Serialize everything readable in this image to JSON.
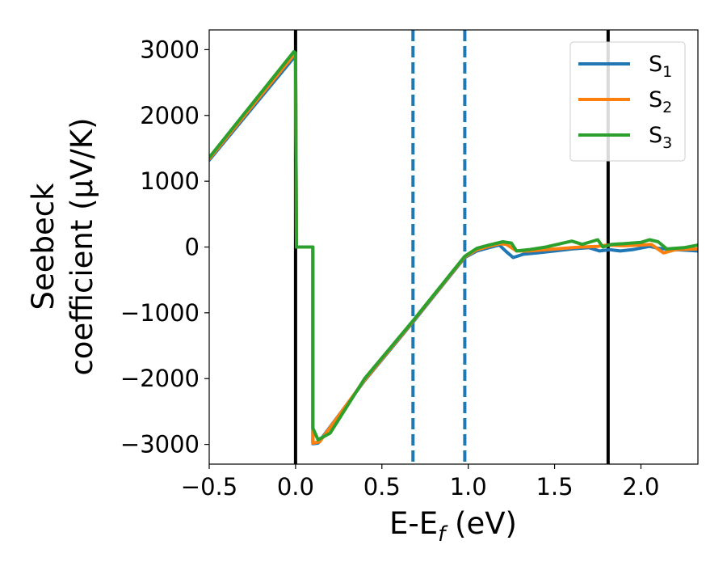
{
  "chart_data": {
    "type": "line",
    "xlabel_main": "E-E",
    "xlabel_sub": "f",
    "xlabel_unit": " (eV)",
    "ylabel_line1": "Seebeck",
    "ylabel_line2": "coefficient  (μV/K)",
    "xlim": [
      -0.5,
      2.33
    ],
    "ylim": [
      -3300,
      3300
    ],
    "xticks": [
      {
        "value": -0.5,
        "label": "−0.5"
      },
      {
        "value": 0.0,
        "label": "0.0"
      },
      {
        "value": 0.5,
        "label": "0.5"
      },
      {
        "value": 1.0,
        "label": "1.0"
      },
      {
        "value": 1.5,
        "label": "1.5"
      },
      {
        "value": 2.0,
        "label": "2.0"
      }
    ],
    "yticks": [
      {
        "value": 3000,
        "label": "3000"
      },
      {
        "value": 2000,
        "label": "2000"
      },
      {
        "value": 1000,
        "label": "1000"
      },
      {
        "value": 0,
        "label": "0"
      },
      {
        "value": -1000,
        "label": "−1000"
      },
      {
        "value": -2000,
        "label": "−2000"
      },
      {
        "value": -3000,
        "label": "−3000"
      }
    ],
    "vlines": [
      {
        "x": 0.0,
        "color": "#000000",
        "style": "solid"
      },
      {
        "x": 1.81,
        "color": "#000000",
        "style": "solid"
      },
      {
        "x": 0.68,
        "color": "#1f77b4",
        "style": "dashed"
      },
      {
        "x": 0.98,
        "color": "#1f77b4",
        "style": "dashed"
      }
    ],
    "legend": {
      "position": "top-right"
    },
    "series": [
      {
        "name": "S",
        "subscript": "1",
        "color": "#1f77b4",
        "points": [
          [
            -0.5,
            1320
          ],
          [
            -0.01,
            2880
          ],
          [
            0.0,
            2860
          ],
          [
            0.005,
            0
          ],
          [
            0.1,
            0
          ],
          [
            0.1,
            -2990
          ],
          [
            0.13,
            -2980
          ],
          [
            0.4,
            -2030
          ],
          [
            0.68,
            -1140
          ],
          [
            0.98,
            -160
          ],
          [
            1.05,
            -60
          ],
          [
            1.12,
            -10
          ],
          [
            1.18,
            30
          ],
          [
            1.22,
            -70
          ],
          [
            1.26,
            -160
          ],
          [
            1.32,
            -110
          ],
          [
            1.4,
            -90
          ],
          [
            1.5,
            -60
          ],
          [
            1.6,
            -30
          ],
          [
            1.7,
            -10
          ],
          [
            1.76,
            -60
          ],
          [
            1.82,
            -40
          ],
          [
            1.88,
            -60
          ],
          [
            1.95,
            -40
          ],
          [
            2.05,
            10
          ],
          [
            2.1,
            -20
          ],
          [
            2.2,
            -40
          ],
          [
            2.33,
            -60
          ]
        ]
      },
      {
        "name": "S",
        "subscript": "2",
        "color": "#ff7f0e",
        "points": [
          [
            -0.5,
            1340
          ],
          [
            -0.01,
            2920
          ],
          [
            0.0,
            2900
          ],
          [
            0.005,
            0
          ],
          [
            0.1,
            0
          ],
          [
            0.1,
            -2980
          ],
          [
            0.14,
            -2960
          ],
          [
            0.4,
            -2020
          ],
          [
            0.68,
            -1130
          ],
          [
            0.98,
            -150
          ],
          [
            1.05,
            -40
          ],
          [
            1.12,
            10
          ],
          [
            1.18,
            50
          ],
          [
            1.22,
            40
          ],
          [
            1.28,
            -60
          ],
          [
            1.35,
            -60
          ],
          [
            1.45,
            -40
          ],
          [
            1.55,
            -20
          ],
          [
            1.65,
            0
          ],
          [
            1.75,
            10
          ],
          [
            1.8,
            30
          ],
          [
            1.9,
            20
          ],
          [
            2.0,
            30
          ],
          [
            2.06,
            40
          ],
          [
            2.13,
            -90
          ],
          [
            2.2,
            -40
          ],
          [
            2.33,
            -30
          ]
        ]
      },
      {
        "name": "S",
        "subscript": "3",
        "color": "#2ca02c",
        "points": [
          [
            -0.5,
            1360
          ],
          [
            -0.01,
            2970
          ],
          [
            0.0,
            2950
          ],
          [
            0.005,
            0
          ],
          [
            0.1,
            0
          ],
          [
            0.1,
            -2750
          ],
          [
            0.13,
            -2930
          ],
          [
            0.2,
            -2830
          ],
          [
            0.4,
            -2000
          ],
          [
            0.68,
            -1120
          ],
          [
            0.98,
            -140
          ],
          [
            1.05,
            -20
          ],
          [
            1.12,
            30
          ],
          [
            1.2,
            80
          ],
          [
            1.25,
            60
          ],
          [
            1.28,
            -60
          ],
          [
            1.35,
            -40
          ],
          [
            1.45,
            0
          ],
          [
            1.55,
            60
          ],
          [
            1.6,
            90
          ],
          [
            1.66,
            40
          ],
          [
            1.71,
            80
          ],
          [
            1.75,
            110
          ],
          [
            1.78,
            0
          ],
          [
            1.83,
            40
          ],
          [
            1.9,
            50
          ],
          [
            2.0,
            70
          ],
          [
            2.05,
            110
          ],
          [
            2.1,
            80
          ],
          [
            2.15,
            -30
          ],
          [
            2.25,
            -10
          ],
          [
            2.33,
            30
          ]
        ]
      }
    ]
  }
}
